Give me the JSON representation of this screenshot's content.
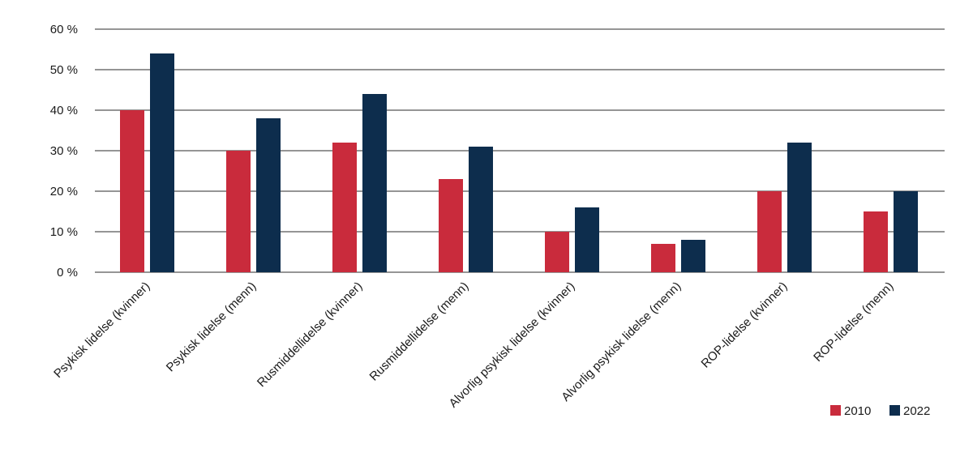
{
  "chart_data": {
    "type": "bar",
    "title": "",
    "xlabel": "",
    "ylabel": "",
    "ylim": [
      0,
      60
    ],
    "y_ticks": [
      0,
      10,
      20,
      30,
      40,
      50,
      60
    ],
    "y_tick_labels": [
      "0 %",
      "10 %",
      "20 %",
      "30 %",
      "40 %",
      "50 %",
      "60 %"
    ],
    "grid": "horizontal",
    "legend_position": "bottom-right",
    "categories": [
      "Psykisk lidelse (kvinner)",
      "Psykisk lidelse (menn)",
      "Rusmiddellidelse (kvinner)",
      "Rusmiddellidelse (menn)",
      "Alvorlig psykisk lidelse (kvinner)",
      "Alvorlig psykisk lidelse (menn)",
      "ROP-lidelse (kvinner)",
      "ROP-lidelse (menn)"
    ],
    "series": [
      {
        "name": "2010",
        "color": "#c92b3c",
        "values": [
          40,
          30,
          32,
          23,
          10,
          7,
          20,
          15
        ]
      },
      {
        "name": "2022",
        "color": "#0d2d4d",
        "values": [
          54,
          38,
          44,
          31,
          16,
          8,
          32,
          20
        ]
      }
    ]
  }
}
